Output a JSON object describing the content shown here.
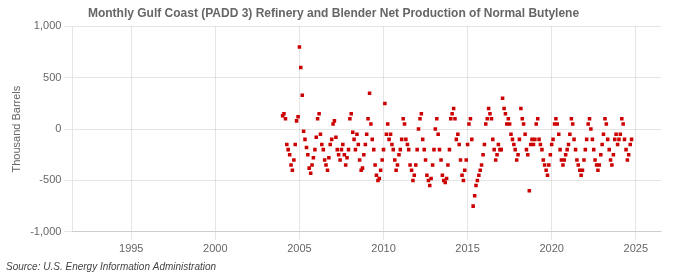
{
  "chart_data": {
    "type": "scatter",
    "title": "Monthly Gulf Coast (PADD 3) Refinery and Blender Net Production of Normal Butylene",
    "ylabel": "Thousand Barrels",
    "annotations": [
      "Source: U.S. Energy Information Administration"
    ],
    "color": "#CC0000",
    "marker": "square",
    "grid": true,
    "xlim": [
      1991.5,
      2026.5
    ],
    "xticks": [
      1995,
      2000,
      2005,
      2010,
      2015,
      2020,
      2025
    ],
    "ylim": [
      -1000,
      1000
    ],
    "yticks": [
      {
        "value": -1000,
        "label": "-1,000"
      },
      -500,
      0,
      500,
      {
        "value": 1000,
        "label": "1,000"
      }
    ],
    "x": [
      2004.0,
      2004.08,
      2004.17,
      2004.25,
      2004.33,
      2004.42,
      2004.5,
      2004.58,
      2004.67,
      2004.75,
      2004.83,
      2004.92,
      2005.0,
      2005.08,
      2005.17,
      2005.25,
      2005.33,
      2005.42,
      2005.5,
      2005.58,
      2005.67,
      2005.75,
      2005.83,
      2005.92,
      2006.0,
      2006.08,
      2006.17,
      2006.25,
      2006.33,
      2006.42,
      2006.5,
      2006.58,
      2006.67,
      2006.75,
      2006.83,
      2006.92,
      2007.0,
      2007.08,
      2007.17,
      2007.25,
      2007.33,
      2007.42,
      2007.5,
      2007.58,
      2007.67,
      2007.75,
      2007.83,
      2007.92,
      2008.0,
      2008.08,
      2008.17,
      2008.25,
      2008.33,
      2008.42,
      2008.5,
      2008.58,
      2008.67,
      2008.75,
      2008.83,
      2008.92,
      2009.0,
      2009.08,
      2009.17,
      2009.25,
      2009.33,
      2009.42,
      2009.5,
      2009.58,
      2009.67,
      2009.75,
      2009.83,
      2009.92,
      2010.0,
      2010.08,
      2010.17,
      2010.25,
      2010.33,
      2010.42,
      2010.5,
      2010.58,
      2010.67,
      2010.75,
      2010.83,
      2010.92,
      2011.0,
      2011.08,
      2011.17,
      2011.25,
      2011.33,
      2011.42,
      2011.5,
      2011.58,
      2011.67,
      2011.75,
      2011.83,
      2011.92,
      2012.0,
      2012.08,
      2012.17,
      2012.25,
      2012.33,
      2012.42,
      2012.5,
      2012.58,
      2012.67,
      2012.75,
      2012.83,
      2012.92,
      2013.0,
      2013.08,
      2013.17,
      2013.25,
      2013.33,
      2013.42,
      2013.5,
      2013.58,
      2013.67,
      2013.75,
      2013.83,
      2013.92,
      2014.0,
      2014.08,
      2014.17,
      2014.25,
      2014.33,
      2014.42,
      2014.5,
      2014.58,
      2014.67,
      2014.75,
      2014.83,
      2014.92,
      2015.0,
      2015.08,
      2015.17,
      2015.25,
      2015.33,
      2015.42,
      2015.5,
      2015.58,
      2015.67,
      2015.75,
      2015.83,
      2015.92,
      2016.0,
      2016.08,
      2016.17,
      2016.25,
      2016.33,
      2016.42,
      2016.5,
      2016.58,
      2016.67,
      2016.75,
      2016.83,
      2016.92,
      2017.0,
      2017.08,
      2017.17,
      2017.25,
      2017.33,
      2017.42,
      2017.5,
      2017.58,
      2017.67,
      2017.75,
      2017.83,
      2017.92,
      2018.0,
      2018.08,
      2018.17,
      2018.25,
      2018.33,
      2018.42,
      2018.5,
      2018.58,
      2018.67,
      2018.75,
      2018.83,
      2018.92,
      2019.0,
      2019.08,
      2019.17,
      2019.25,
      2019.33,
      2019.42,
      2019.5,
      2019.58,
      2019.67,
      2019.75,
      2019.83,
      2019.92,
      2020.0,
      2020.08,
      2020.17,
      2020.25,
      2020.33,
      2020.42,
      2020.5,
      2020.58,
      2020.67,
      2020.75,
      2020.83,
      2020.92,
      2021.0,
      2021.08,
      2021.17,
      2021.25,
      2021.33,
      2021.42,
      2021.5,
      2021.58,
      2021.67,
      2021.75,
      2021.83,
      2021.92,
      2022.0,
      2022.08,
      2022.17,
      2022.25,
      2022.33,
      2022.42,
      2022.5,
      2022.58,
      2022.67,
      2022.75,
      2022.83,
      2022.92,
      2023.0,
      2023.08,
      2023.17,
      2023.25,
      2023.33,
      2023.42,
      2023.5,
      2023.58,
      2023.67,
      2023.75,
      2023.83,
      2023.92,
      2024.0,
      2024.08,
      2024.17,
      2024.25,
      2024.33,
      2024.42,
      2024.5,
      2024.58,
      2024.67,
      2024.75
    ],
    "values": [
      130,
      150,
      100,
      -150,
      -200,
      -250,
      -350,
      -400,
      -300,
      -150,
      80,
      120,
      800,
      600,
      330,
      -20,
      -100,
      -180,
      -250,
      -380,
      -430,
      -350,
      -280,
      -200,
      -80,
      100,
      150,
      -50,
      -150,
      -200,
      -300,
      -350,
      -400,
      -280,
      -150,
      -100,
      50,
      80,
      -80,
      -200,
      -250,
      -300,
      -200,
      -150,
      -250,
      -350,
      -280,
      -200,
      100,
      150,
      -30,
      -100,
      -200,
      -50,
      -150,
      -300,
      -400,
      -380,
      -250,
      -150,
      -50,
      100,
      350,
      50,
      -100,
      -200,
      -350,
      -450,
      -500,
      -480,
      -400,
      -300,
      -200,
      250,
      -50,
      50,
      -100,
      -50,
      -150,
      -200,
      -300,
      -400,
      -350,
      -250,
      -200,
      -100,
      100,
      50,
      -100,
      -150,
      -200,
      -350,
      -400,
      -500,
      -450,
      -350,
      -200,
      0,
      100,
      150,
      -100,
      -200,
      -300,
      -450,
      -500,
      -550,
      -480,
      -350,
      -200,
      0,
      100,
      -50,
      -200,
      -300,
      -450,
      -500,
      -520,
      -480,
      -350,
      -200,
      100,
      150,
      200,
      100,
      -100,
      -50,
      -150,
      -300,
      -450,
      -500,
      -400,
      -300,
      -150,
      50,
      100,
      -100,
      -750,
      -650,
      -550,
      -500,
      -450,
      -400,
      -350,
      -250,
      -150,
      50,
      100,
      200,
      150,
      100,
      -100,
      -200,
      -300,
      -250,
      -150,
      -200,
      -200,
      300,
      200,
      150,
      50,
      100,
      50,
      -50,
      -100,
      -150,
      -200,
      -300,
      -250,
      -100,
      200,
      100,
      50,
      -50,
      -200,
      -250,
      -600,
      -150,
      -100,
      -150,
      -100,
      50,
      100,
      -100,
      -150,
      -200,
      -300,
      -350,
      -400,
      -450,
      -350,
      -250,
      -150,
      -100,
      50,
      100,
      50,
      -50,
      -200,
      -300,
      -350,
      -300,
      -250,
      -200,
      -150,
      -50,
      100,
      50,
      -100,
      -200,
      -300,
      -350,
      -400,
      -450,
      -400,
      -300,
      -200,
      -100,
      50,
      100,
      0,
      -100,
      -200,
      -300,
      -350,
      -400,
      -350,
      -250,
      -150,
      -50,
      100,
      50,
      -100,
      -200,
      -300,
      -350,
      -250,
      -100,
      -50,
      -150,
      -100,
      -50,
      100,
      50,
      -100,
      -200,
      -300,
      -250,
      -150,
      -100
    ]
  }
}
